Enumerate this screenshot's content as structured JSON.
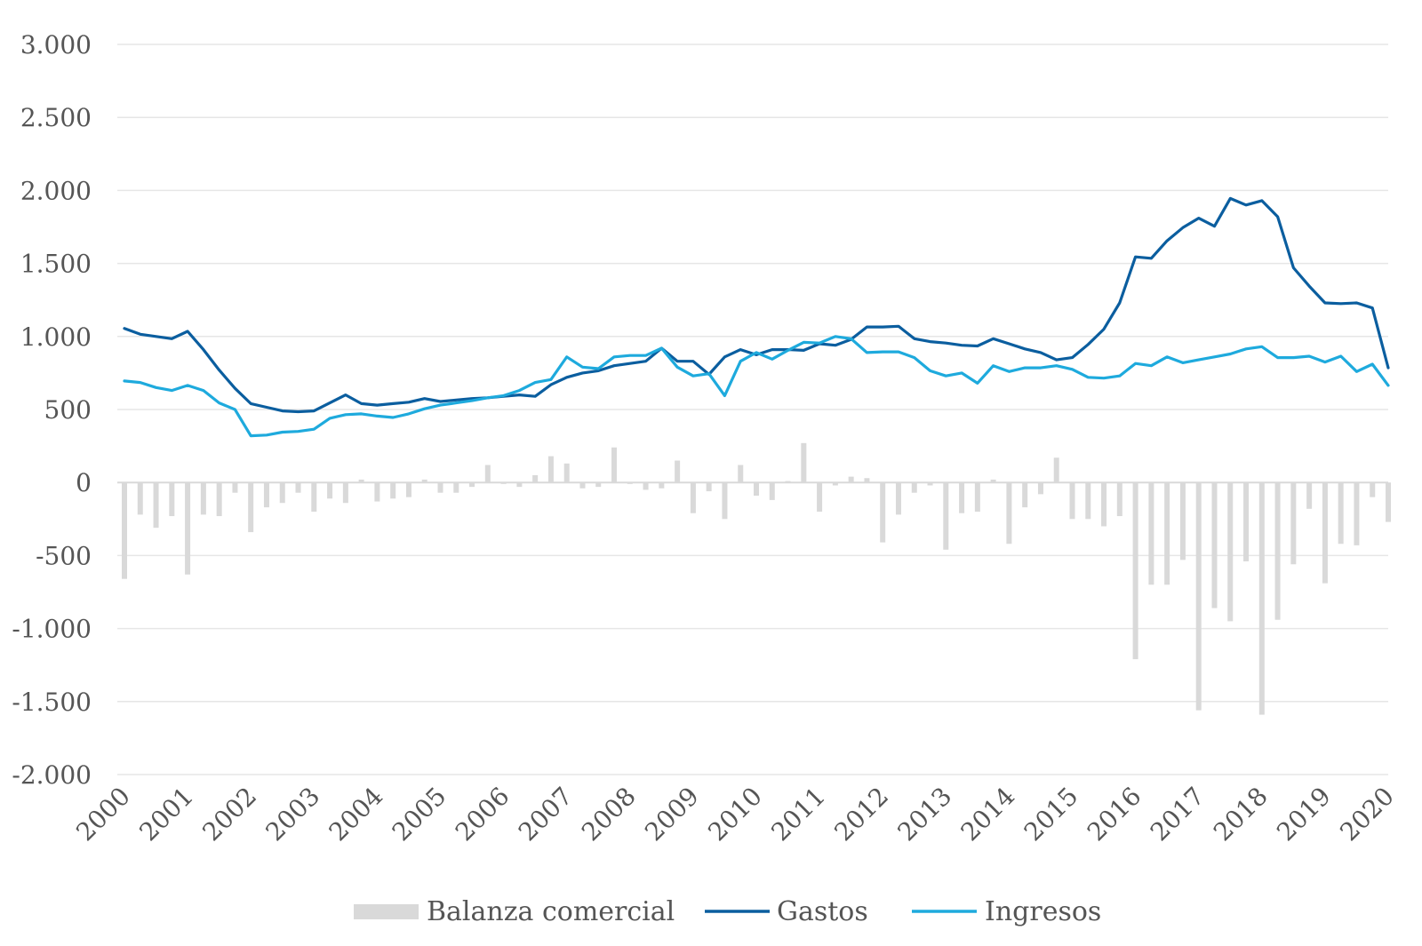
{
  "chart_data": {
    "type": "bar+line",
    "title": "",
    "xlabel": "",
    "ylabel": "",
    "ylim": [
      -2000,
      3000
    ],
    "y_ticks": [
      3000,
      2500,
      2000,
      1500,
      1000,
      500,
      0,
      -500,
      -1000,
      -1500,
      -2000
    ],
    "y_tick_labels": [
      "3.000",
      "2.500",
      "2.000",
      "1.500",
      "1.000",
      "500",
      "0",
      "-500",
      "-1.000",
      "-1.500",
      "-2.000"
    ],
    "x_tick_labels": [
      "2000",
      "2001",
      "2002",
      "2003",
      "2004",
      "2005",
      "2006",
      "2007",
      "2008",
      "2009",
      "2010",
      "2011",
      "2012",
      "2013",
      "2014",
      "2015",
      "2016",
      "2017",
      "2018",
      "2019",
      "2020"
    ],
    "x_range": [
      2000,
      2020
    ],
    "grid": true,
    "legend_position": "bottom",
    "colors": {
      "bars": "#d9d9d9",
      "gastos": "#0b5e9f",
      "ingresos": "#1eaadd",
      "axis": "#d9d9d9",
      "text": "#555555"
    },
    "series": [
      {
        "name": "Balanza comercial",
        "kind": "bar",
        "x": [
          2000.0,
          2000.25,
          2000.5,
          2000.75,
          2001.0,
          2001.25,
          2001.5,
          2001.75,
          2002.0,
          2002.25,
          2002.5,
          2002.75,
          2003.0,
          2003.25,
          2003.5,
          2003.75,
          2004.0,
          2004.25,
          2004.5,
          2004.75,
          2005.0,
          2005.25,
          2005.5,
          2005.75,
          2006.0,
          2006.25,
          2006.5,
          2006.75,
          2007.0,
          2007.25,
          2007.5,
          2007.75,
          2008.0,
          2008.25,
          2008.5,
          2008.75,
          2009.0,
          2009.25,
          2009.5,
          2009.75,
          2010.0,
          2010.25,
          2010.5,
          2010.75,
          2011.0,
          2011.25,
          2011.5,
          2011.75,
          2012.0,
          2012.25,
          2012.5,
          2012.75,
          2013.0,
          2013.25,
          2013.5,
          2013.75,
          2014.0,
          2014.25,
          2014.5,
          2014.75,
          2015.0,
          2015.25,
          2015.5,
          2015.75,
          2016.0,
          2016.25,
          2016.5,
          2016.75,
          2017.0,
          2017.25,
          2017.5,
          2017.75,
          2018.0,
          2018.25,
          2018.5,
          2018.75,
          2019.0,
          2019.25,
          2019.5,
          2019.75,
          2020.0
        ],
        "values": [
          -660,
          -220,
          -310,
          -230,
          -630,
          -220,
          -230,
          -70,
          -340,
          -170,
          -140,
          -70,
          -200,
          -110,
          -140,
          20,
          -130,
          -110,
          -100,
          20,
          -70,
          -70,
          -30,
          120,
          -10,
          -30,
          50,
          180,
          130,
          -40,
          -30,
          240,
          -10,
          -50,
          -40,
          150,
          -210,
          -60,
          -250,
          120,
          -90,
          -120,
          10,
          270,
          -200,
          -20,
          40,
          30,
          -410,
          -220,
          -70,
          -20,
          -460,
          -210,
          -200,
          20,
          -420,
          -170,
          -80,
          170,
          -250,
          -250,
          -300,
          -230,
          -1210,
          -700,
          -700,
          -530,
          -1560,
          -860,
          -950,
          -540,
          -1590,
          -940,
          -560,
          -180,
          -690,
          -420,
          -430,
          -100,
          -270
        ]
      },
      {
        "name": "Gastos",
        "kind": "line",
        "x": [
          2000.0,
          2000.25,
          2000.5,
          2000.75,
          2001.0,
          2001.25,
          2001.5,
          2001.75,
          2002.0,
          2002.25,
          2002.5,
          2002.75,
          2003.0,
          2003.25,
          2003.5,
          2003.75,
          2004.0,
          2004.25,
          2004.5,
          2004.75,
          2005.0,
          2005.25,
          2005.5,
          2005.75,
          2006.0,
          2006.25,
          2006.5,
          2006.75,
          2007.0,
          2007.25,
          2007.5,
          2007.75,
          2008.0,
          2008.25,
          2008.5,
          2008.75,
          2009.0,
          2009.25,
          2009.5,
          2009.75,
          2010.0,
          2010.25,
          2010.5,
          2010.75,
          2011.0,
          2011.25,
          2011.5,
          2011.75,
          2012.0,
          2012.25,
          2012.5,
          2012.75,
          2013.0,
          2013.25,
          2013.5,
          2013.75,
          2014.0,
          2014.25,
          2014.5,
          2014.75,
          2015.0,
          2015.25,
          2015.5,
          2015.75,
          2016.0,
          2016.25,
          2016.5,
          2016.75,
          2017.0,
          2017.25,
          2017.5,
          2017.75,
          2018.0,
          2018.25,
          2018.5,
          2018.75,
          2019.0,
          2019.25,
          2019.5,
          2019.75,
          2020.0
        ],
        "values": [
          1055,
          1015,
          1000,
          985,
          1035,
          910,
          770,
          645,
          540,
          515,
          490,
          485,
          490,
          545,
          600,
          540,
          530,
          540,
          550,
          575,
          555,
          565,
          575,
          580,
          590,
          600,
          590,
          670,
          720,
          750,
          765,
          800,
          815,
          830,
          920,
          830,
          830,
          740,
          860,
          910,
          875,
          910,
          910,
          905,
          950,
          940,
          980,
          1065,
          1065,
          1070,
          985,
          965,
          955,
          940,
          935,
          985,
          950,
          915,
          890,
          840,
          855,
          945,
          1050,
          1230,
          1545,
          1535,
          1655,
          1745,
          1810,
          1755,
          1945,
          1900,
          1930,
          1820,
          1470,
          1345,
          1230,
          1225,
          1230,
          1195,
          785
        ]
      },
      {
        "name": "Ingresos",
        "kind": "line",
        "x": [
          2000.0,
          2000.25,
          2000.5,
          2000.75,
          2001.0,
          2001.25,
          2001.5,
          2001.75,
          2002.0,
          2002.25,
          2002.5,
          2002.75,
          2003.0,
          2003.25,
          2003.5,
          2003.75,
          2004.0,
          2004.25,
          2004.5,
          2004.75,
          2005.0,
          2005.25,
          2005.5,
          2005.75,
          2006.0,
          2006.25,
          2006.5,
          2006.75,
          2007.0,
          2007.25,
          2007.5,
          2007.75,
          2008.0,
          2008.25,
          2008.5,
          2008.75,
          2009.0,
          2009.25,
          2009.5,
          2009.75,
          2010.0,
          2010.25,
          2010.5,
          2010.75,
          2011.0,
          2011.25,
          2011.5,
          2011.75,
          2012.0,
          2012.25,
          2012.5,
          2012.75,
          2013.0,
          2013.25,
          2013.5,
          2013.75,
          2014.0,
          2014.25,
          2014.5,
          2014.75,
          2015.0,
          2015.25,
          2015.5,
          2015.75,
          2016.0,
          2016.25,
          2016.5,
          2016.75,
          2017.0,
          2017.25,
          2017.5,
          2017.75,
          2018.0,
          2018.25,
          2018.5,
          2018.75,
          2019.0,
          2019.25,
          2019.5,
          2019.75,
          2020.0
        ],
        "values": [
          695,
          685,
          650,
          630,
          665,
          630,
          545,
          500,
          320,
          325,
          345,
          350,
          365,
          440,
          465,
          470,
          455,
          445,
          470,
          505,
          530,
          545,
          560,
          580,
          595,
          630,
          685,
          705,
          860,
          790,
          780,
          860,
          870,
          870,
          920,
          790,
          730,
          745,
          595,
          830,
          890,
          845,
          905,
          960,
          955,
          1000,
          985,
          890,
          895,
          895,
          855,
          765,
          730,
          750,
          680,
          800,
          760,
          785,
          785,
          800,
          775,
          720,
          715,
          730,
          815,
          800,
          860,
          820,
          840,
          860,
          880,
          915,
          930,
          855,
          855,
          865,
          825,
          865,
          760,
          810,
          665
        ]
      }
    ]
  }
}
